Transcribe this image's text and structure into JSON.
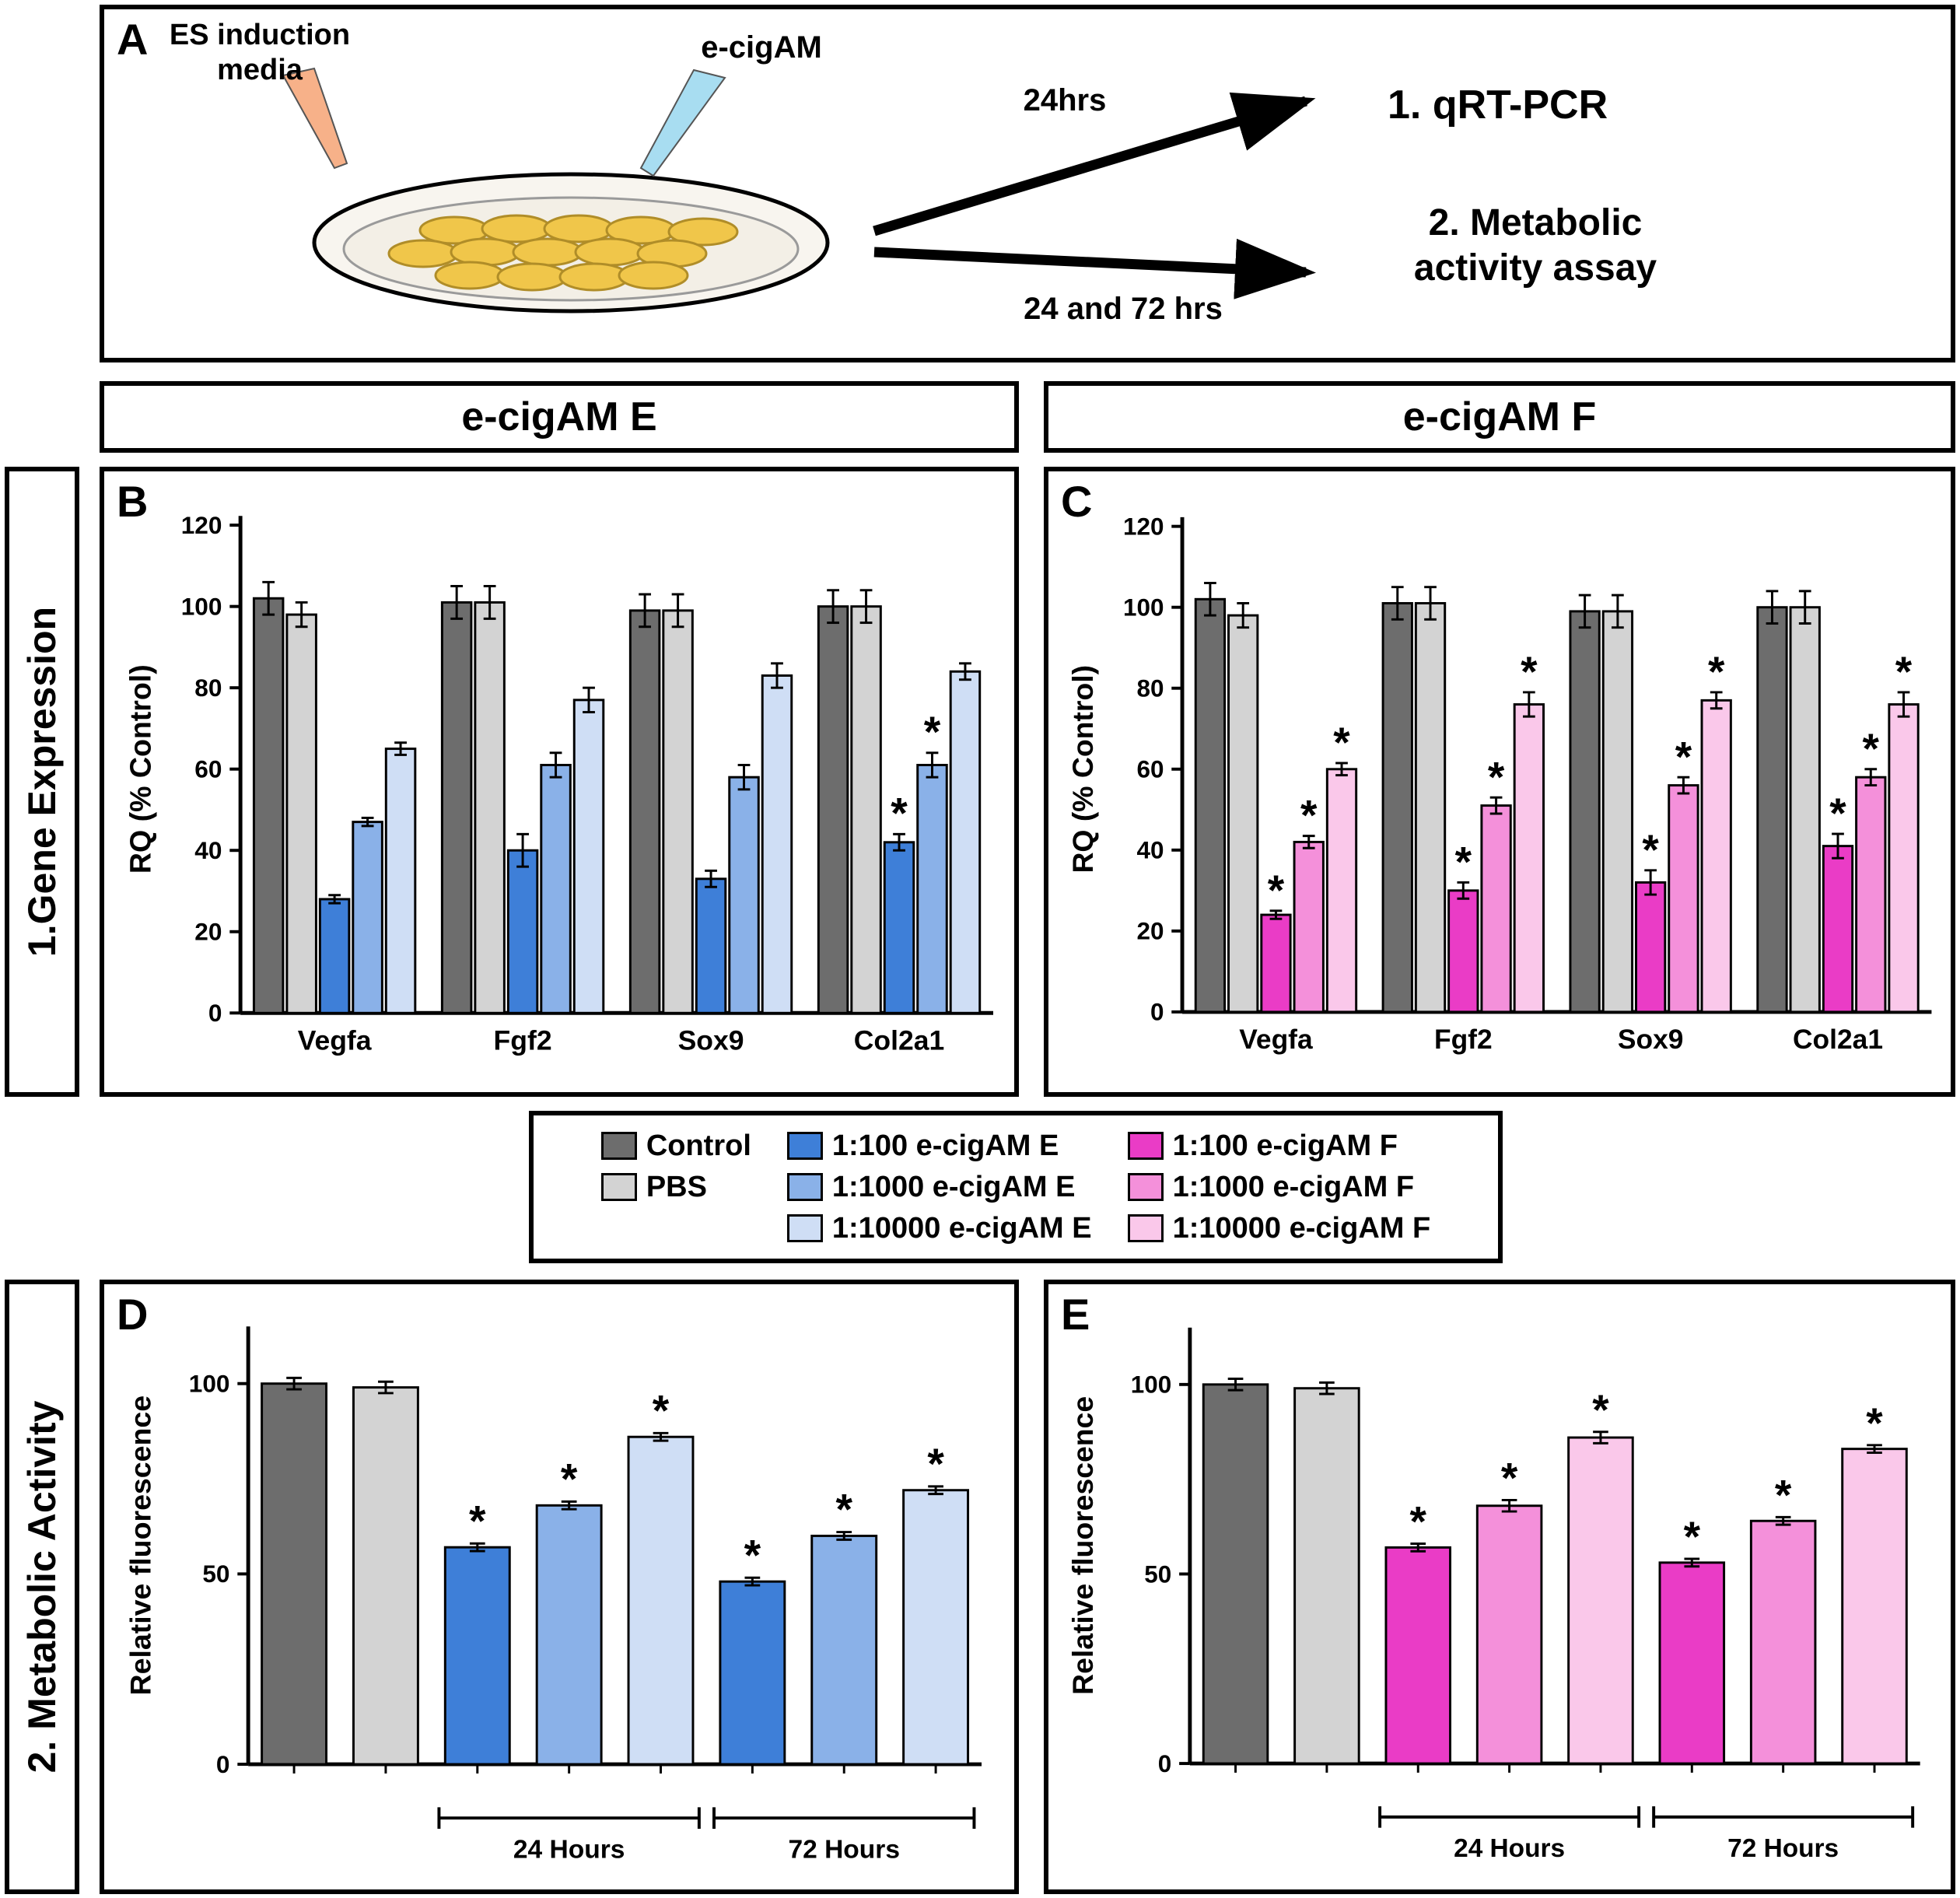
{
  "panelA": {
    "label": "A",
    "es_media_line1": "ES induction",
    "es_media_line2": "media",
    "ecigam_label": "e-cigAM",
    "arrow_top_label": "24hrs",
    "arrow_top_target": "1. qRT-PCR",
    "arrow_bottom_label": "24 and 72 hrs",
    "arrow_bottom_target_line1": "2. Metabolic",
    "arrow_bottom_target_line2": "activity assay"
  },
  "section_headers": {
    "left": "e-cigAM E",
    "right": "e-cigAM F"
  },
  "side_labels": {
    "gene_expression": "1.Gene Expression",
    "metabolic_activity": "2. Metabolic Activity"
  },
  "legend": {
    "items": [
      {
        "label": "Control",
        "color": "#6d6d6d"
      },
      {
        "label": "PBS",
        "color": "#d3d3d3"
      },
      {
        "label": "1:100 e-cigAM E",
        "color": "#3e7fd8"
      },
      {
        "label": "1:1000 e-cigAM E",
        "color": "#8ab1e8"
      },
      {
        "label": "1:10000 e-cigAM E",
        "color": "#cfdef5"
      },
      {
        "label": "1:100 e-cigAM F",
        "color": "#ea3cc6"
      },
      {
        "label": "1:1000 e-cigAM F",
        "color": "#f490da"
      },
      {
        "label": "1:10000 e-cigAM F",
        "color": "#fac8ea"
      }
    ]
  },
  "chart_data": [
    {
      "panel_label": "B",
      "type": "bar",
      "layout": "grouped",
      "title": "e-cigAM E gene expression",
      "ylabel": "RQ (% Control)",
      "ylim": [
        0,
        120
      ],
      "yticks": [
        0,
        20,
        40,
        60,
        80,
        100,
        120
      ],
      "categories": [
        "Vegfa",
        "Fgf2",
        "Sox9",
        "Col2a1"
      ],
      "series": [
        {
          "name": "Control",
          "color": "#6d6d6d",
          "values": [
            102,
            101,
            99,
            100
          ],
          "errors": [
            4,
            4,
            4,
            4
          ],
          "sig": [
            false,
            false,
            false,
            false
          ]
        },
        {
          "name": "PBS",
          "color": "#d3d3d3",
          "values": [
            98,
            101,
            99,
            100
          ],
          "errors": [
            3,
            4,
            4,
            4
          ],
          "sig": [
            false,
            false,
            false,
            false
          ]
        },
        {
          "name": "1:100 e-cigAM E",
          "color": "#3e7fd8",
          "values": [
            28,
            40,
            33,
            42
          ],
          "errors": [
            1,
            4,
            2,
            2
          ],
          "sig": [
            false,
            false,
            false,
            true
          ]
        },
        {
          "name": "1:1000 e-cigAM E",
          "color": "#8ab1e8",
          "values": [
            47,
            61,
            58,
            61
          ],
          "errors": [
            1,
            3,
            3,
            3
          ],
          "sig": [
            false,
            false,
            false,
            true
          ]
        },
        {
          "name": "1:10000 e-cigAM E",
          "color": "#cfdef5",
          "values": [
            65,
            77,
            83,
            84
          ],
          "errors": [
            1.5,
            3,
            3,
            2
          ],
          "sig": [
            false,
            false,
            false,
            false
          ]
        }
      ]
    },
    {
      "panel_label": "C",
      "type": "bar",
      "layout": "grouped",
      "title": "e-cigAM F gene expression",
      "ylabel": "RQ (% Control)",
      "ylim": [
        0,
        120
      ],
      "yticks": [
        0,
        20,
        40,
        60,
        80,
        100,
        120
      ],
      "categories": [
        "Vegfa",
        "Fgf2",
        "Sox9",
        "Col2a1"
      ],
      "series": [
        {
          "name": "Control",
          "color": "#6d6d6d",
          "values": [
            102,
            101,
            99,
            100
          ],
          "errors": [
            4,
            4,
            4,
            4
          ],
          "sig": [
            false,
            false,
            false,
            false
          ]
        },
        {
          "name": "PBS",
          "color": "#d3d3d3",
          "values": [
            98,
            101,
            99,
            100
          ],
          "errors": [
            3,
            4,
            4,
            4
          ],
          "sig": [
            false,
            false,
            false,
            false
          ]
        },
        {
          "name": "1:100 e-cigAM F",
          "color": "#ea3cc6",
          "values": [
            24,
            30,
            32,
            41
          ],
          "errors": [
            1,
            2,
            3,
            3
          ],
          "sig": [
            true,
            true,
            true,
            true
          ]
        },
        {
          "name": "1:1000 e-cigAM F",
          "color": "#f490da",
          "values": [
            42,
            51,
            56,
            58
          ],
          "errors": [
            1.5,
            2,
            2,
            2
          ],
          "sig": [
            true,
            true,
            true,
            true
          ]
        },
        {
          "name": "1:10000 e-cigAM F",
          "color": "#fac8ea",
          "values": [
            60,
            76,
            77,
            76
          ],
          "errors": [
            1.5,
            3,
            2,
            3
          ],
          "sig": [
            true,
            true,
            true,
            true
          ]
        }
      ]
    },
    {
      "panel_label": "D",
      "type": "bar",
      "layout": "flat",
      "title": "e-cigAM E metabolic activity",
      "ylabel": "Relative fluorescence",
      "ylim": [
        0,
        115
      ],
      "yticks": [
        0,
        50,
        100
      ],
      "bars": [
        {
          "label": "Control",
          "color": "#6d6d6d",
          "value": 100,
          "error": 1.5,
          "sig": false
        },
        {
          "label": "PBS",
          "color": "#d3d3d3",
          "value": 99,
          "error": 1.5,
          "sig": false
        },
        {
          "label": "1:100 e-cigAM E",
          "color": "#3e7fd8",
          "value": 57,
          "error": 1,
          "sig": true
        },
        {
          "label": "1:1000 e-cigAM E",
          "color": "#8ab1e8",
          "value": 68,
          "error": 1,
          "sig": true
        },
        {
          "label": "1:10000 e-cigAM E",
          "color": "#cfdef5",
          "value": 86,
          "error": 1,
          "sig": true
        },
        {
          "label": "1:100 e-cigAM E",
          "color": "#3e7fd8",
          "value": 48,
          "error": 1,
          "sig": true
        },
        {
          "label": "1:1000 e-cigAM E",
          "color": "#8ab1e8",
          "value": 60,
          "error": 1,
          "sig": true
        },
        {
          "label": "1:10000 e-cigAM E",
          "color": "#cfdef5",
          "value": 72,
          "error": 1,
          "sig": true
        }
      ],
      "group_brackets": [
        {
          "label": "24 Hours",
          "from": 2,
          "to": 4
        },
        {
          "label": "72 Hours",
          "from": 5,
          "to": 7
        }
      ]
    },
    {
      "panel_label": "E",
      "type": "bar",
      "layout": "flat",
      "title": "e-cigAM F metabolic activity",
      "ylabel": "Relative fluorescence",
      "ylim": [
        0,
        115
      ],
      "yticks": [
        0,
        50,
        100
      ],
      "bars": [
        {
          "label": "Control",
          "color": "#6d6d6d",
          "value": 100,
          "error": 1.5,
          "sig": false
        },
        {
          "label": "PBS",
          "color": "#d3d3d3",
          "value": 99,
          "error": 1.5,
          "sig": false
        },
        {
          "label": "1:100 e-cigAM F",
          "color": "#ea3cc6",
          "value": 57,
          "error": 1,
          "sig": true
        },
        {
          "label": "1:1000 e-cigAM F",
          "color": "#f490da",
          "value": 68,
          "error": 1.5,
          "sig": true
        },
        {
          "label": "1:10000 e-cigAM F",
          "color": "#fac8ea",
          "value": 86,
          "error": 1.5,
          "sig": true
        },
        {
          "label": "1:100 e-cigAM F",
          "color": "#ea3cc6",
          "value": 53,
          "error": 1,
          "sig": true
        },
        {
          "label": "1:1000 e-cigAM F",
          "color": "#f490da",
          "value": 64,
          "error": 1,
          "sig": true
        },
        {
          "label": "1:10000 e-cigAM F",
          "color": "#fac8ea",
          "value": 83,
          "error": 1,
          "sig": true
        }
      ],
      "group_brackets": [
        {
          "label": "24 Hours",
          "from": 2,
          "to": 4
        },
        {
          "label": "72 Hours",
          "from": 5,
          "to": 7
        }
      ]
    }
  ]
}
